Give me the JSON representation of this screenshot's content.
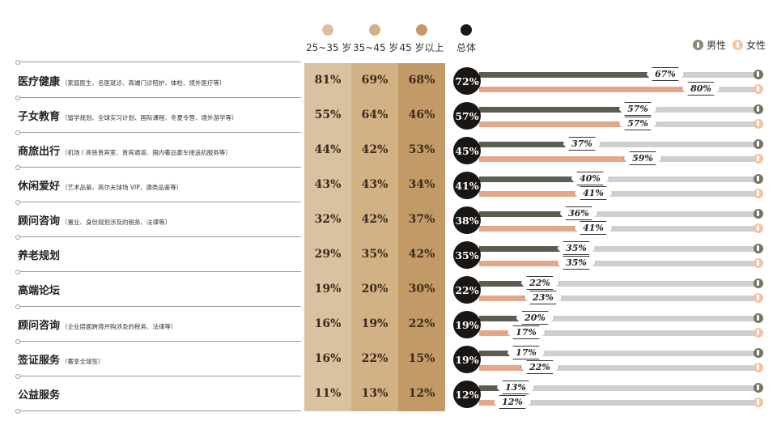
{
  "legend": {
    "age_groups": [
      {
        "label": "25~35 岁",
        "color": "#d9c2a0"
      },
      {
        "label": "35~45 岁",
        "color": "#d2b185"
      },
      {
        "label": "45 岁以上",
        "color": "#c29a68"
      }
    ],
    "total_label": "总体",
    "total_color": "#1a1613",
    "male_label": "男性",
    "female_label": "女性"
  },
  "colors": {
    "male_bar": "#5b5c52",
    "female_bar": "#e3a88a",
    "track": "#cfcfcf"
  },
  "chart_data": {
    "type": "table",
    "columns": [
      "25~35 岁",
      "35~45 岁",
      "45 岁以上",
      "总体",
      "男性",
      "女性"
    ],
    "rows": [
      {
        "name": "医疗健康",
        "sub": "（家庭医生、名医就诊、高端门诊陪护、体检、境外医疗等）",
        "age": [
          "81%",
          "69%",
          "68%"
        ],
        "total": "72%",
        "male": 67,
        "female": 80
      },
      {
        "name": "子女教育",
        "sub": "（留学规划、全球实习计划、国际课程、冬夏令营、境外游学等）",
        "age": [
          "55%",
          "64%",
          "46%"
        ],
        "total": "57%",
        "male": 57,
        "female": 57
      },
      {
        "name": "商旅出行",
        "sub": "（机场 / 高铁贵宾室、贵宾通道、国内奢品豪车接送机服务等）",
        "age": [
          "44%",
          "42%",
          "53%"
        ],
        "total": "45%",
        "male": 37,
        "female": 59
      },
      {
        "name": "休闲爱好",
        "sub": "（艺术品鉴、高尔夫球场 VIP、酒类品鉴等）",
        "age": [
          "43%",
          "43%",
          "34%"
        ],
        "total": "41%",
        "male": 40,
        "female": 41
      },
      {
        "name": "顾问咨询",
        "sub": "（置业、身份规划涉及的税务、法律等）",
        "age": [
          "32%",
          "42%",
          "37%"
        ],
        "total": "38%",
        "male": 36,
        "female": 41
      },
      {
        "name": "养老规划",
        "sub": "",
        "age": [
          "29%",
          "35%",
          "42%"
        ],
        "total": "35%",
        "male": 35,
        "female": 35
      },
      {
        "name": "高端论坛",
        "sub": "",
        "age": [
          "19%",
          "20%",
          "30%"
        ],
        "total": "22%",
        "male": 22,
        "female": 23
      },
      {
        "name": "顾问咨询",
        "sub": "（企业层面跨境并购涉及的税务、法律等）",
        "age": [
          "16%",
          "19%",
          "22%"
        ],
        "total": "19%",
        "male": 20,
        "female": 17
      },
      {
        "name": "签证服务",
        "sub": "（奢享全球签）",
        "age": [
          "16%",
          "22%",
          "15%"
        ],
        "total": "19%",
        "male": 17,
        "female": 22
      },
      {
        "name": "公益服务",
        "sub": "",
        "age": [
          "11%",
          "13%",
          "12%"
        ],
        "total": "12%",
        "male": 13,
        "female": 12
      }
    ]
  }
}
